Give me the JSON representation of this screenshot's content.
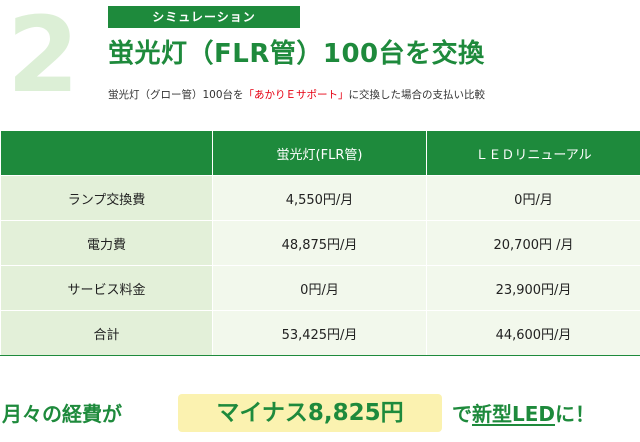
{
  "step": {
    "number": "2",
    "tag": "シミュレーション"
  },
  "title": "蛍光灯（FLR管）100台を交換",
  "subtitle": {
    "prefix": "蛍光灯（グロー管）100台を",
    "highlight": "「あかりＥサポート」",
    "suffix": "に交換した場合の支払い比較"
  },
  "table": {
    "columns": [
      "",
      "蛍光灯(FLR管)",
      "ＬＥＤリニューアル"
    ],
    "rows": [
      {
        "label": "ランプ交換費",
        "fluorescent": "4,550円/月",
        "led": "0円/月"
      },
      {
        "label": "電力費",
        "fluorescent": "48,875円/月",
        "led": "20,700円 /月"
      },
      {
        "label": "サービス料金",
        "fluorescent": "0円/月",
        "led": "23,900円/月"
      },
      {
        "label": "合計",
        "fluorescent": "53,425円/月",
        "led": "44,600円/月"
      }
    ]
  },
  "banner": {
    "lead": "月々の経費が",
    "amount": "マイナス8,825円",
    "tail_prefix": "で",
    "tail_strong": "新型LED",
    "tail_suffix": "に！"
  },
  "colors": {
    "brand_green": "#1e8a3c",
    "light_green": "#e3f0d9",
    "highlight_red": "#e60012",
    "banner_yellow": "#fbf2b0"
  }
}
